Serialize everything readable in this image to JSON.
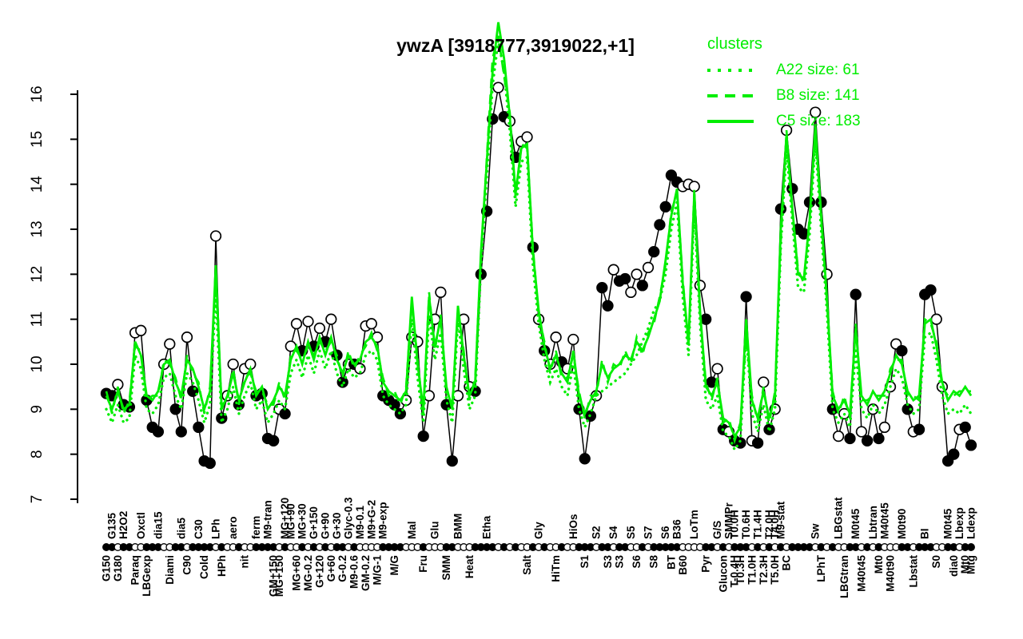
{
  "title": "ywzA [3918777,3919022,+1]",
  "colors": {
    "cluster_green": "#00ee00",
    "gene_black": "#000000",
    "background": "#ffffff"
  },
  "legend": {
    "title": "clusters",
    "entries": [
      {
        "label": "A22 size: 61",
        "style": "dotted"
      },
      {
        "label": "B8 size: 141",
        "style": "dashed"
      },
      {
        "label": "C5 size: 183",
        "style": "solid"
      }
    ]
  },
  "chart_data": {
    "type": "line",
    "title": "ywzA [3918777,3919022,+1]",
    "xlabel": "",
    "ylabel": "",
    "ylim": [
      7,
      16
    ],
    "yticks": [
      7,
      8,
      9,
      10,
      11,
      12,
      13,
      14,
      15,
      16
    ],
    "grid": false,
    "legend_position": "top-right",
    "n_points": 151,
    "x_labels": [
      {
        "t": "G150",
        "i": 0,
        "r": "b"
      },
      {
        "t": "G135",
        "i": 1,
        "r": "a"
      },
      {
        "t": "G180",
        "i": 2,
        "r": "b"
      },
      {
        "t": "H2O2",
        "i": 3,
        "r": "a"
      },
      {
        "t": "Paraq",
        "i": 5,
        "r": "b"
      },
      {
        "t": "Oxctl",
        "i": 6,
        "r": "a"
      },
      {
        "t": "LBGexp",
        "i": 7,
        "r": "b"
      },
      {
        "t": "dia15",
        "i": 9,
        "r": "a"
      },
      {
        "t": "Diami",
        "i": 11,
        "r": "b"
      },
      {
        "t": "dia5",
        "i": 13,
        "r": "a"
      },
      {
        "t": "C90",
        "i": 14,
        "r": "b"
      },
      {
        "t": "C30",
        "i": 16,
        "r": "a"
      },
      {
        "t": "Cold",
        "i": 17,
        "r": "b"
      },
      {
        "t": "LPh",
        "i": 19,
        "r": "a"
      },
      {
        "t": "HPh",
        "i": 20,
        "r": "b"
      },
      {
        "t": "aero",
        "i": 22,
        "r": "a"
      },
      {
        "t": "nit",
        "i": 24,
        "r": "b"
      },
      {
        "t": "ferm",
        "i": 26,
        "r": "a"
      },
      {
        "t": "M9-tran",
        "i": 28,
        "r": "a"
      },
      {
        "t": "GM+150",
        "i": 29,
        "r": "b"
      },
      {
        "t": "MG+150",
        "i": 30,
        "r": "b"
      },
      {
        "t": "MG+120",
        "i": 31,
        "r": "a"
      },
      {
        "t": "MG+90",
        "i": 32,
        "r": "a"
      },
      {
        "t": "MG+60",
        "i": 33,
        "r": "b"
      },
      {
        "t": "MG+30",
        "i": 34,
        "r": "a"
      },
      {
        "t": "MG-0.2",
        "i": 35,
        "r": "b"
      },
      {
        "t": "G+150",
        "i": 36,
        "r": "a"
      },
      {
        "t": "G+120",
        "i": 37,
        "r": "b"
      },
      {
        "t": "G+90",
        "i": 38,
        "r": "a"
      },
      {
        "t": "G+60",
        "i": 39,
        "r": "b"
      },
      {
        "t": "G+30",
        "i": 40,
        "r": "a"
      },
      {
        "t": "G-0.2",
        "i": 41,
        "r": "b"
      },
      {
        "t": "Glyc-0.3",
        "i": 42,
        "r": "a"
      },
      {
        "t": "M9-0.6",
        "i": 43,
        "r": "b"
      },
      {
        "t": "M9-0.1",
        "i": 44,
        "r": "a"
      },
      {
        "t": "GM-0.2",
        "i": 45,
        "r": "b"
      },
      {
        "t": "M9+G-2",
        "i": 46,
        "r": "a"
      },
      {
        "t": "M/G-1",
        "i": 47,
        "r": "b"
      },
      {
        "t": "M9-exp",
        "i": 48,
        "r": "a"
      },
      {
        "t": "M/G",
        "i": 50,
        "r": "b"
      },
      {
        "t": "Mal",
        "i": 53,
        "r": "a"
      },
      {
        "t": "Fru",
        "i": 55,
        "r": "b"
      },
      {
        "t": "Glu",
        "i": 57,
        "r": "a"
      },
      {
        "t": "SMM",
        "i": 59,
        "r": "b"
      },
      {
        "t": "BMM",
        "i": 61,
        "r": "a"
      },
      {
        "t": "Heat",
        "i": 63,
        "r": "b"
      },
      {
        "t": "Etha",
        "i": 66,
        "r": "a"
      },
      {
        "t": "Salt",
        "i": 73,
        "r": "b"
      },
      {
        "t": "Gly",
        "i": 75,
        "r": "a"
      },
      {
        "t": "HiTm",
        "i": 78,
        "r": "b"
      },
      {
        "t": "HiOs",
        "i": 81,
        "r": "a"
      },
      {
        "t": "S1",
        "i": 83,
        "r": "b"
      },
      {
        "t": "S2",
        "i": 85,
        "r": "a"
      },
      {
        "t": "S3",
        "i": 87,
        "r": "b"
      },
      {
        "t": "S4",
        "i": 88,
        "r": "a"
      },
      {
        "t": "S3",
        "i": 89,
        "r": "b"
      },
      {
        "t": "S5",
        "i": 91,
        "r": "a"
      },
      {
        "t": "S6",
        "i": 92,
        "r": "b"
      },
      {
        "t": "S7",
        "i": 94,
        "r": "a"
      },
      {
        "t": "S8",
        "i": 95,
        "r": "b"
      },
      {
        "t": "S6",
        "i": 97,
        "r": "a"
      },
      {
        "t": "BT",
        "i": 98,
        "r": "b"
      },
      {
        "t": "B36",
        "i": 99,
        "r": "a"
      },
      {
        "t": "B60",
        "i": 100,
        "r": "b"
      },
      {
        "t": "LoTm",
        "i": 102,
        "r": "a"
      },
      {
        "t": "Pyr",
        "i": 104,
        "r": "b"
      },
      {
        "t": "G/S",
        "i": 106,
        "r": "a"
      },
      {
        "t": "Glucon",
        "i": 107,
        "r": "b"
      },
      {
        "t": "SMMPr",
        "i": 108,
        "r": "a"
      },
      {
        "t": "T-0.4H",
        "i": 109,
        "r": "b"
      },
      {
        "t": "T0.0H",
        "i": 109,
        "r": "a"
      },
      {
        "t": "T0.3H",
        "i": 110,
        "r": "b"
      },
      {
        "t": "T0.6H",
        "i": 111,
        "r": "a"
      },
      {
        "t": "T1.0H",
        "i": 112,
        "r": "b"
      },
      {
        "t": "T1.4H",
        "i": 113,
        "r": "a"
      },
      {
        "t": "T2.3H",
        "i": 114,
        "r": "b"
      },
      {
        "t": "T2.0H",
        "i": 115,
        "r": "a"
      },
      {
        "t": "T5.0H",
        "i": 116,
        "r": "b"
      },
      {
        "t": "T4.0H",
        "i": 116,
        "r": "a"
      },
      {
        "t": "M9-stat",
        "i": 117,
        "r": "a"
      },
      {
        "t": "BC",
        "i": 118,
        "r": "b"
      },
      {
        "t": "Sw",
        "i": 123,
        "r": "a"
      },
      {
        "t": "LPhT",
        "i": 124,
        "r": "b"
      },
      {
        "t": "LBGstat",
        "i": 127,
        "r": "a"
      },
      {
        "t": "LBGtran",
        "i": 128,
        "r": "b"
      },
      {
        "t": "M0t45",
        "i": 130,
        "r": "a"
      },
      {
        "t": "M40t45",
        "i": 131,
        "r": "b"
      },
      {
        "t": "Lbtran",
        "i": 133,
        "r": "a"
      },
      {
        "t": "Mt0",
        "i": 134,
        "r": "b"
      },
      {
        "t": "M40t45",
        "i": 135,
        "r": "a"
      },
      {
        "t": "M40t90",
        "i": 136,
        "r": "b"
      },
      {
        "t": "M0t90",
        "i": 138,
        "r": "a"
      },
      {
        "t": "Lbstat",
        "i": 140,
        "r": "b"
      },
      {
        "t": "BI",
        "i": 142,
        "r": "a"
      },
      {
        "t": "S0",
        "i": 144,
        "r": "b"
      },
      {
        "t": "M0t45",
        "i": 146,
        "r": "a"
      },
      {
        "t": "dia0",
        "i": 147,
        "r": "b"
      },
      {
        "t": "Lbexp",
        "i": 148,
        "r": "a"
      },
      {
        "t": "Mt0",
        "i": 149,
        "r": "b"
      },
      {
        "t": "Ldexp",
        "i": 150,
        "r": "a"
      },
      {
        "t": "Mtg",
        "i": 150,
        "r": "b"
      }
    ],
    "series": [
      {
        "name": "ywzA expression",
        "role": "gene",
        "color": "#000000",
        "marker": "circle",
        "fills": "1101100111001101111010010011110100101010110100001111000100011000111101010010100100111011011001011111000011010111010101011110101001101010001101110011011",
        "values": [
          9.35,
          9.3,
          9.55,
          9.1,
          9.05,
          10.7,
          10.75,
          9.2,
          8.6,
          8.5,
          10.0,
          10.45,
          9.0,
          8.5,
          10.6,
          9.4,
          8.6,
          7.85,
          7.8,
          12.85,
          8.8,
          9.3,
          10.0,
          9.1,
          9.9,
          10.0,
          9.3,
          9.35,
          8.35,
          8.3,
          9.0,
          8.9,
          10.4,
          10.9,
          10.3,
          10.95,
          10.4,
          10.8,
          10.5,
          11.0,
          10.2,
          9.6,
          10.0,
          10.0,
          9.9,
          10.85,
          10.9,
          10.6,
          9.3,
          9.2,
          9.1,
          8.9,
          9.2,
          10.6,
          10.5,
          8.4,
          9.3,
          11.0,
          11.6,
          9.1,
          7.85,
          9.3,
          11.0,
          9.5,
          9.4,
          12.0,
          13.4,
          15.45,
          16.15,
          15.5,
          15.4,
          14.6,
          14.95,
          15.05,
          12.6,
          11.0,
          10.3,
          10.0,
          10.6,
          10.05,
          9.9,
          10.55,
          9.0,
          7.9,
          8.85,
          9.3,
          11.7,
          11.3,
          12.1,
          11.85,
          11.9,
          11.6,
          12.0,
          11.75,
          12.15,
          12.5,
          13.1,
          13.5,
          14.2,
          14.05,
          13.95,
          14.0,
          13.95,
          11.75,
          11.0,
          9.6,
          9.9,
          8.55,
          8.5,
          8.3,
          8.25,
          11.5,
          8.3,
          8.25,
          9.6,
          8.55,
          9.0,
          13.45,
          15.2,
          13.9,
          13.0,
          12.9,
          13.6,
          15.6,
          13.6,
          12.0,
          9.0,
          8.4,
          8.9,
          8.35,
          11.55,
          8.5,
          8.3,
          9.0,
          8.35,
          8.6,
          9.5,
          10.45,
          10.3,
          9.0,
          8.5,
          8.55,
          11.55,
          11.65,
          11.0,
          9.5,
          7.85,
          8.0,
          8.55,
          8.6,
          8.2
        ]
      },
      {
        "name": "C5 size: 183",
        "role": "cluster",
        "color": "#00ee00",
        "dash": "solid",
        "values": [
          9.3,
          9.0,
          9.4,
          9.0,
          9.1,
          10.5,
          10.2,
          9.3,
          9.2,
          9.4,
          10.0,
          10.1,
          9.6,
          9.3,
          10.1,
          9.9,
          9.5,
          9.0,
          9.4,
          12.2,
          9.0,
          9.3,
          9.8,
          9.2,
          9.6,
          9.9,
          9.3,
          9.5,
          9.0,
          9.2,
          9.5,
          9.3,
          10.1,
          10.4,
          10.0,
          10.5,
          10.1,
          10.6,
          10.2,
          10.6,
          10.1,
          9.8,
          10.2,
          10.0,
          10.1,
          10.5,
          10.6,
          10.4,
          9.6,
          9.4,
          9.3,
          9.2,
          9.4,
          11.5,
          10.0,
          9.0,
          11.5,
          10.4,
          11.0,
          9.5,
          9.0,
          11.3,
          10.2,
          9.3,
          9.6,
          12.5,
          14.5,
          16.5,
          17.6,
          16.8,
          15.5,
          13.8,
          14.8,
          14.9,
          12.5,
          11.2,
          10.4,
          9.9,
          10.2,
          9.8,
          9.6,
          10.3,
          9.3,
          8.9,
          9.2,
          9.4,
          10.0,
          9.7,
          9.9,
          10.0,
          10.2,
          10.1,
          10.5,
          10.3,
          10.6,
          11.0,
          11.4,
          12.3,
          13.3,
          13.9,
          11.8,
          10.5,
          13.8,
          11.2,
          9.5,
          9.3,
          9.6,
          8.8,
          8.7,
          8.4,
          8.6,
          11.0,
          9.2,
          8.8,
          9.4,
          8.8,
          9.3,
          13.0,
          15.1,
          13.5,
          12.0,
          11.9,
          13.2,
          15.3,
          13.3,
          11.5,
          9.3,
          9.0,
          9.2,
          8.9,
          10.8,
          9.3,
          9.1,
          9.4,
          9.2,
          9.4,
          9.8,
          10.2,
          10.0,
          9.4,
          9.2,
          9.3,
          10.9,
          11.0,
          10.4,
          9.6,
          9.2,
          9.4,
          9.3,
          9.5,
          9.3
        ]
      },
      {
        "name": "B8 size: 141",
        "role": "cluster",
        "color": "#00ee00",
        "dash": "dashed",
        "values": [
          9.4,
          8.9,
          9.5,
          8.9,
          9.2,
          10.4,
          10.3,
          9.2,
          9.3,
          9.3,
          10.1,
          10.0,
          9.7,
          9.2,
          10.2,
          9.8,
          9.6,
          8.9,
          9.5,
          12.0,
          9.1,
          9.2,
          9.9,
          9.1,
          9.7,
          9.8,
          9.4,
          9.4,
          9.1,
          9.1,
          9.6,
          9.2,
          10.2,
          10.3,
          10.1,
          10.4,
          10.2,
          10.5,
          10.3,
          10.5,
          10.2,
          9.7,
          10.3,
          9.9,
          10.2,
          10.4,
          10.7,
          10.3,
          9.7,
          9.3,
          9.4,
          9.1,
          9.5,
          11.4,
          10.1,
          8.9,
          11.6,
          10.3,
          11.1,
          9.4,
          9.1,
          11.2,
          10.3,
          9.2,
          9.7,
          12.4,
          14.6,
          16.8,
          17.3,
          16.4,
          15.6,
          13.7,
          14.9,
          14.8,
          12.6,
          11.1,
          10.5,
          9.8,
          10.3,
          9.7,
          9.7,
          10.2,
          9.4,
          8.8,
          9.3,
          9.3,
          10.1,
          9.6,
          10.0,
          9.9,
          10.3,
          10.0,
          10.6,
          10.2,
          10.7,
          10.9,
          11.5,
          12.2,
          13.4,
          13.8,
          11.9,
          10.4,
          13.9,
          11.1,
          9.6,
          9.2,
          9.7,
          8.7,
          8.8,
          8.3,
          8.7,
          10.6,
          9.3,
          8.7,
          9.5,
          8.7,
          9.4,
          12.7,
          15.2,
          13.4,
          12.1,
          11.8,
          13.3,
          15.1,
          13.4,
          11.4,
          9.4,
          8.9,
          9.3,
          8.8,
          10.9,
          9.2,
          9.2,
          9.3,
          9.3,
          9.3,
          9.9,
          10.1,
          10.1,
          9.3,
          9.3,
          9.2,
          11.0,
          10.9,
          10.5,
          9.5,
          9.3,
          9.3,
          9.4,
          9.4,
          9.4
        ]
      },
      {
        "name": "A22 size: 61",
        "role": "cluster",
        "color": "#00ee00",
        "dash": "dotted",
        "values": [
          9.0,
          8.7,
          9.1,
          8.7,
          8.8,
          10.2,
          9.9,
          9.0,
          8.9,
          9.1,
          9.7,
          9.8,
          9.3,
          9.0,
          9.8,
          9.6,
          9.2,
          8.7,
          9.1,
          11.6,
          8.7,
          9.0,
          9.5,
          8.9,
          9.3,
          9.6,
          9.0,
          9.2,
          8.7,
          8.9,
          9.2,
          9.0,
          9.8,
          10.1,
          9.7,
          10.2,
          9.8,
          10.3,
          9.9,
          10.3,
          9.8,
          9.5,
          9.9,
          9.7,
          9.8,
          10.2,
          10.3,
          10.1,
          9.3,
          9.1,
          9.0,
          8.9,
          9.1,
          11.0,
          9.7,
          8.7,
          11.1,
          10.1,
          10.7,
          9.2,
          8.7,
          11.0,
          9.9,
          9.0,
          9.3,
          12.2,
          14.2,
          16.2,
          17.2,
          16.5,
          15.2,
          13.5,
          14.5,
          14.6,
          12.2,
          10.9,
          10.1,
          9.6,
          9.9,
          9.5,
          9.3,
          10.0,
          9.0,
          8.6,
          8.9,
          9.3,
          9.4,
          9.5,
          9.6,
          9.7,
          9.8,
          10.0,
          10.2,
          10.5,
          10.8,
          11.2,
          11.4,
          12.0,
          13.0,
          13.6,
          11.5,
          10.2,
          13.5,
          10.9,
          9.2,
          9.0,
          9.3,
          8.5,
          8.4,
          8.1,
          8.3,
          10.7,
          8.9,
          8.5,
          9.1,
          8.5,
          9.0,
          12.6,
          14.8,
          13.2,
          11.7,
          11.6,
          12.9,
          15.0,
          13.0,
          11.2,
          9.0,
          8.7,
          8.9,
          8.6,
          10.3,
          9.0,
          8.8,
          9.1,
          8.9,
          9.1,
          9.5,
          9.9,
          9.7,
          9.1,
          8.9,
          9.0,
          10.6,
          10.7,
          10.1,
          9.3,
          8.9,
          9.0,
          8.9,
          9.1,
          8.9
        ]
      }
    ]
  }
}
